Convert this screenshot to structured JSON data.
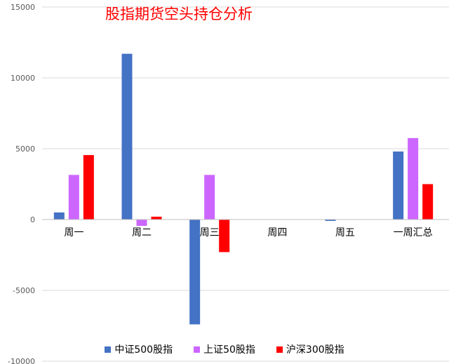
{
  "chart_data": {
    "type": "bar",
    "title": "股指期货空头持仓分析",
    "categories": [
      "周一",
      "周二",
      "周三",
      "周四",
      "周五",
      "一周汇总"
    ],
    "series": [
      {
        "name": "中证500股指",
        "color": "#4472c4",
        "values": [
          500,
          11700,
          -7400,
          0,
          -100,
          4800
        ]
      },
      {
        "name": "上证50股指",
        "color": "#cc66ff",
        "values": [
          3150,
          -450,
          3150,
          0,
          0,
          5750
        ]
      },
      {
        "name": "沪深300股指",
        "color": "#ff0000",
        "values": [
          4550,
          200,
          -2300,
          0,
          0,
          2500
        ]
      }
    ],
    "y_ticks": [
      "15000",
      "10000",
      "5000",
      "0",
      "-5000",
      "-10000"
    ],
    "ylim": [
      -10000,
      15000
    ],
    "grid": true,
    "legend": "bottom",
    "xlabel": "",
    "ylabel": ""
  }
}
